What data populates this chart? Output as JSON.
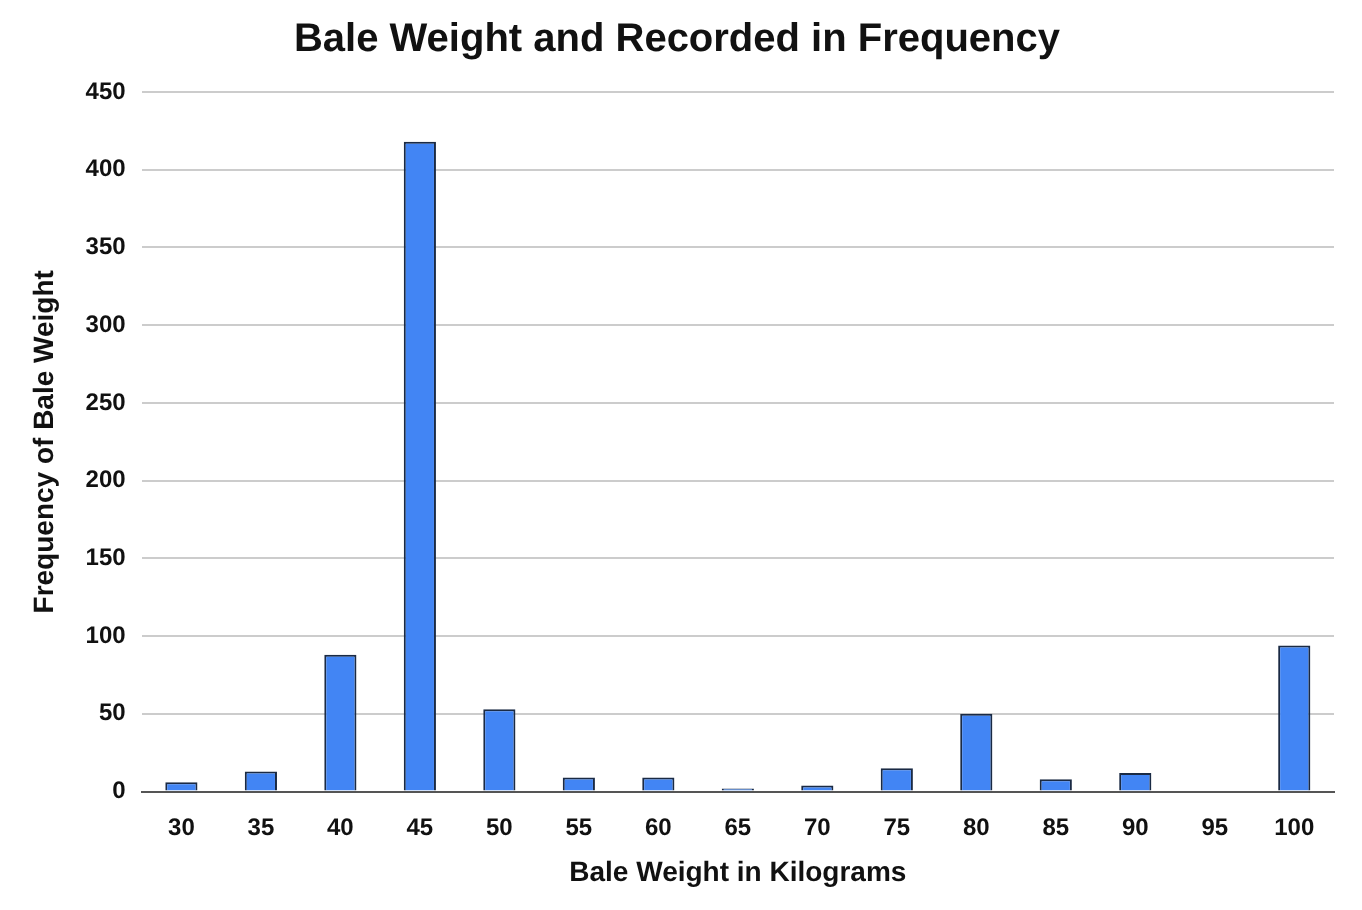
{
  "chart_data": {
    "type": "bar",
    "title": "Bale Weight and Recorded in Frequency",
    "xlabel": "Bale Weight in Kilograms",
    "ylabel": "Frequency of Bale Weight",
    "categories": [
      "30",
      "35",
      "40",
      "45",
      "50",
      "55",
      "60",
      "65",
      "70",
      "75",
      "80",
      "85",
      "90",
      "95",
      "100"
    ],
    "values": [
      6,
      13,
      88,
      418,
      53,
      9,
      9,
      2,
      4,
      15,
      50,
      8,
      12,
      0,
      94
    ],
    "color": "#4285f4",
    "ylim": [
      0,
      450
    ],
    "yticks": [
      0,
      50,
      100,
      150,
      200,
      250,
      300,
      350,
      400,
      450
    ],
    "grid": "y",
    "legend": false
  }
}
